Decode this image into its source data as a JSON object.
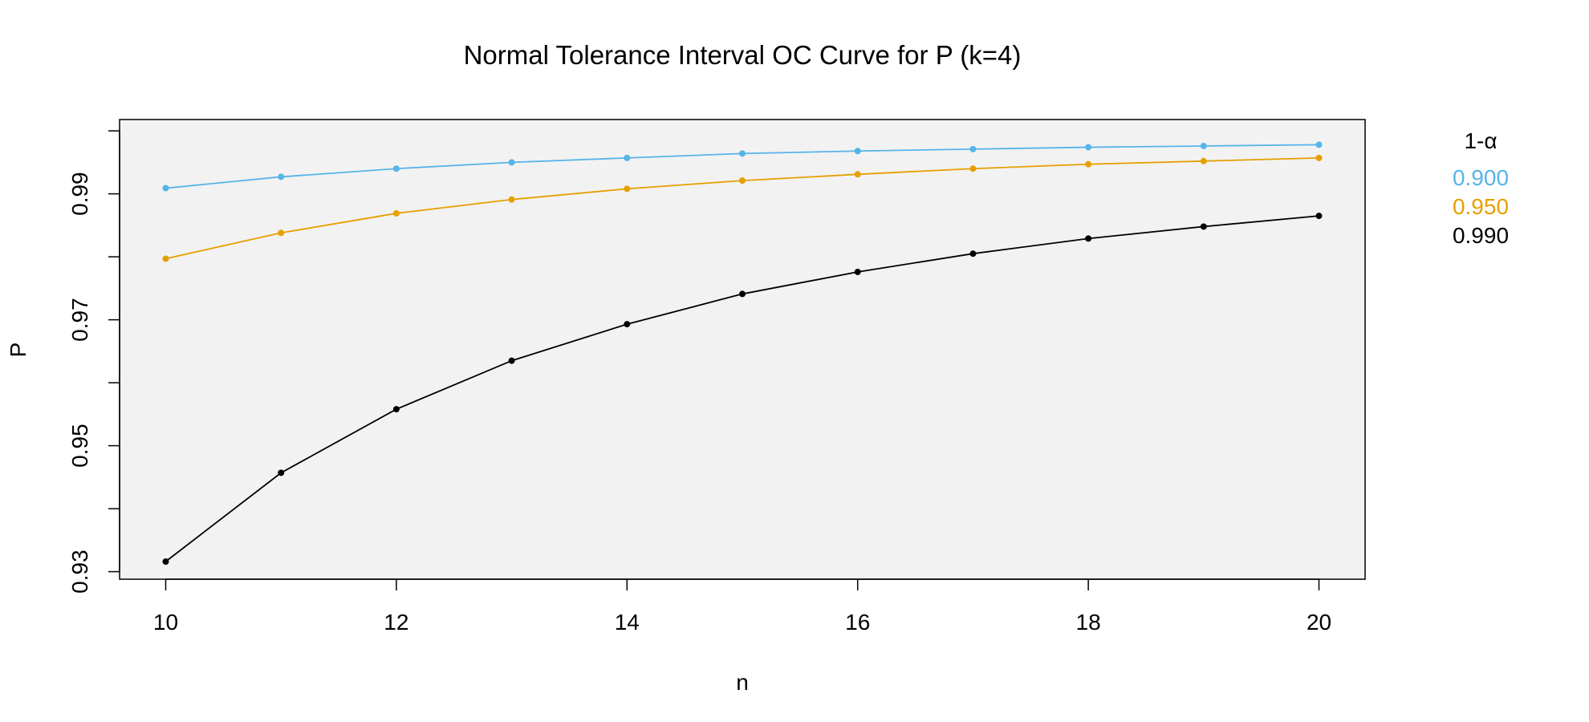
{
  "chart_data": {
    "type": "line",
    "title": "Normal Tolerance Interval OC Curve for P (k=4)",
    "xlabel": "n",
    "ylabel": "P",
    "xlim": [
      9.6,
      20.4
    ],
    "ylim": [
      0.9288,
      1.0018
    ],
    "x_ticks": [
      10,
      12,
      14,
      16,
      18,
      20
    ],
    "y_ticks": [
      0.93,
      0.94,
      0.95,
      0.96,
      0.97,
      0.98,
      0.99,
      1.0
    ],
    "y_tick_labels": [
      "0.93",
      "",
      "0.95",
      "",
      "0.97",
      "",
      "0.99",
      ""
    ],
    "plot_background": "#f2f2f2",
    "grid": false,
    "x": [
      10,
      11,
      12,
      13,
      14,
      15,
      16,
      17,
      18,
      19,
      20
    ],
    "legend": {
      "title": "1-α",
      "title_color": "#00008b",
      "placement": "outside-right"
    },
    "series": [
      {
        "name": "0.900",
        "color": "#56b4e9",
        "values": [
          0.9909,
          0.9927,
          0.994,
          0.995,
          0.9957,
          0.9964,
          0.9968,
          0.9971,
          0.9974,
          0.9976,
          0.9978
        ]
      },
      {
        "name": "0.950",
        "color": "#e69f00",
        "values": [
          0.9797,
          0.9838,
          0.9869,
          0.9891,
          0.9908,
          0.9921,
          0.9931,
          0.994,
          0.9947,
          0.9952,
          0.9957
        ]
      },
      {
        "name": "0.990",
        "color": "#000000",
        "values": [
          0.9316,
          0.9457,
          0.9558,
          0.9635,
          0.9693,
          0.9741,
          0.9776,
          0.9805,
          0.9829,
          0.9848,
          0.9865
        ]
      }
    ]
  }
}
